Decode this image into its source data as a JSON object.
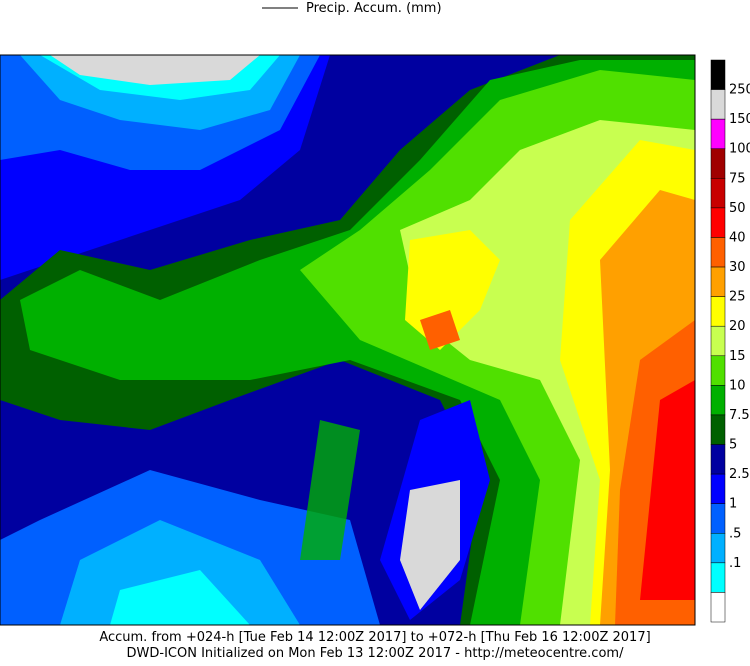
{
  "legend": {
    "line_label": "Precip. Accum. (mm)"
  },
  "colorbar": {
    "labels": [
      "250",
      "150",
      "100",
      "75",
      "50",
      "40",
      "30",
      "25",
      "20",
      "15",
      "10",
      "7.5",
      "5",
      "2.5",
      "1",
      ".5",
      ".1"
    ],
    "colors": [
      "#000000",
      "#d9d9d9",
      "#ff00ff",
      "#a00000",
      "#c80000",
      "#ff0000",
      "#ff6000",
      "#ffa000",
      "#ffff00",
      "#c8ff50",
      "#50e000",
      "#00b000",
      "#006000",
      "#0000a0",
      "#0000ff",
      "#0060ff",
      "#00b0ff",
      "#00ffff",
      "#ffffff"
    ]
  },
  "footer": {
    "line1": "Accum. from +024-h [Tue Feb 14 12:00Z 2017] to +072-h [Thu Feb 16 12:00Z 2017]",
    "line2": "DWD-ICON Initialized on Mon Feb 13 12:00Z 2017 - http://meteocentre.com/"
  }
}
